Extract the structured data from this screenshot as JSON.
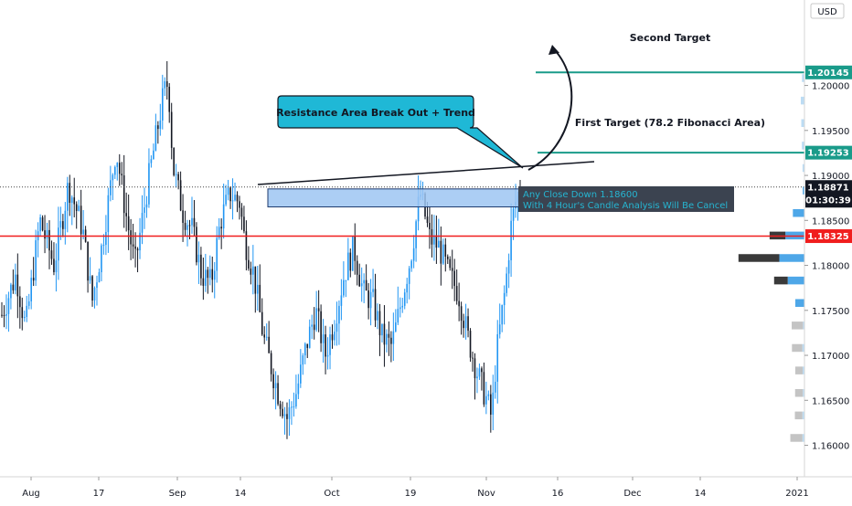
{
  "currency": "USD",
  "colors": {
    "candle_up": "#2196f3",
    "candle_down": "#131722",
    "target_line": "#1a9b8a",
    "stop_line": "#f01e1e",
    "zone_fill": "#9ec5f2",
    "zone_stroke": "#1e3a6e",
    "callout_fill": "#1fb8d6",
    "warning_text": "#26b5d1",
    "warning_bg": "#3b4350",
    "vol_dark": "#3a3a3a",
    "vol_light": "#c4c4c4",
    "vol_blue": "#4ea7e8",
    "vol_blue_light": "#bcdcf4"
  },
  "chart_data": {
    "type": "candlestick",
    "instrument_quote": "USD",
    "x_ticks": [
      "Aug",
      "17",
      "Sep",
      "14",
      "Oct",
      "19",
      "Nov",
      "16",
      "Dec",
      "14",
      "2021"
    ],
    "y_ticks": [
      "1.20000",
      "1.19500",
      "1.19000",
      "1.18500",
      "1.18000",
      "1.17500",
      "1.17000",
      "1.16500",
      "1.16000"
    ],
    "ylim": [
      1.1565,
      1.2095
    ],
    "price_path": [
      [
        0,
        1.1745
      ],
      [
        3,
        1.179
      ],
      [
        5,
        1.173
      ],
      [
        8,
        1.185
      ],
      [
        11,
        1.18
      ],
      [
        14,
        1.189
      ],
      [
        17,
        1.184
      ],
      [
        19,
        1.176
      ],
      [
        21,
        1.182
      ],
      [
        24,
        1.193
      ],
      [
        26,
        1.186
      ],
      [
        28,
        1.18
      ],
      [
        31,
        1.19
      ],
      [
        34,
        1.199
      ],
      [
        35,
        1.2005
      ],
      [
        36,
        1.191
      ],
      [
        38,
        1.186
      ],
      [
        40,
        1.184
      ],
      [
        42,
        1.179
      ],
      [
        44,
        1.178
      ],
      [
        46,
        1.185
      ],
      [
        48,
        1.188
      ],
      [
        50,
        1.187
      ],
      [
        51,
        1.183
      ],
      [
        53,
        1.179
      ],
      [
        55,
        1.172
      ],
      [
        58,
        1.166
      ],
      [
        60,
        1.163
      ],
      [
        62,
        1.166
      ],
      [
        64,
        1.171
      ],
      [
        66,
        1.175
      ],
      [
        68,
        1.17
      ],
      [
        70,
        1.174
      ],
      [
        72,
        1.179
      ],
      [
        74,
        1.182
      ],
      [
        76,
        1.177
      ],
      [
        78,
        1.176
      ],
      [
        80,
        1.172
      ],
      [
        82,
        1.171
      ],
      [
        84,
        1.176
      ],
      [
        86,
        1.181
      ],
      [
        88,
        1.188
      ],
      [
        90,
        1.183
      ],
      [
        92,
        1.182
      ],
      [
        94,
        1.179
      ],
      [
        96,
        1.177
      ],
      [
        98,
        1.172
      ],
      [
        100,
        1.168
      ],
      [
        102,
        1.165
      ],
      [
        103,
        1.163
      ],
      [
        104,
        1.17
      ],
      [
        106,
        1.178
      ],
      [
        107,
        1.184
      ],
      [
        108,
        1.187
      ],
      [
        109,
        1.188
      ]
    ],
    "levels": {
      "second_target": 1.20145,
      "first_target": 1.19253,
      "stop": 1.18325,
      "last_price": 1.18871
    },
    "resistance_zone": [
      1.1865,
      1.1885
    ]
  },
  "annotations": {
    "callout": "Resistance Area Break Out  + Trend",
    "second_target": "Second Target",
    "first_target": "First Target (78.2 Fibonacci Area)",
    "warning_line1": "Any Close Down 1.18600",
    "warning_line2": "With 4 Hour's Candle Analysis Will Be Cancel"
  },
  "price_labels": {
    "second_target": "1.20145",
    "first_target": "1.19253",
    "last_price": "1.18871",
    "countdown": "01:30:39",
    "stop": "1.18325"
  }
}
